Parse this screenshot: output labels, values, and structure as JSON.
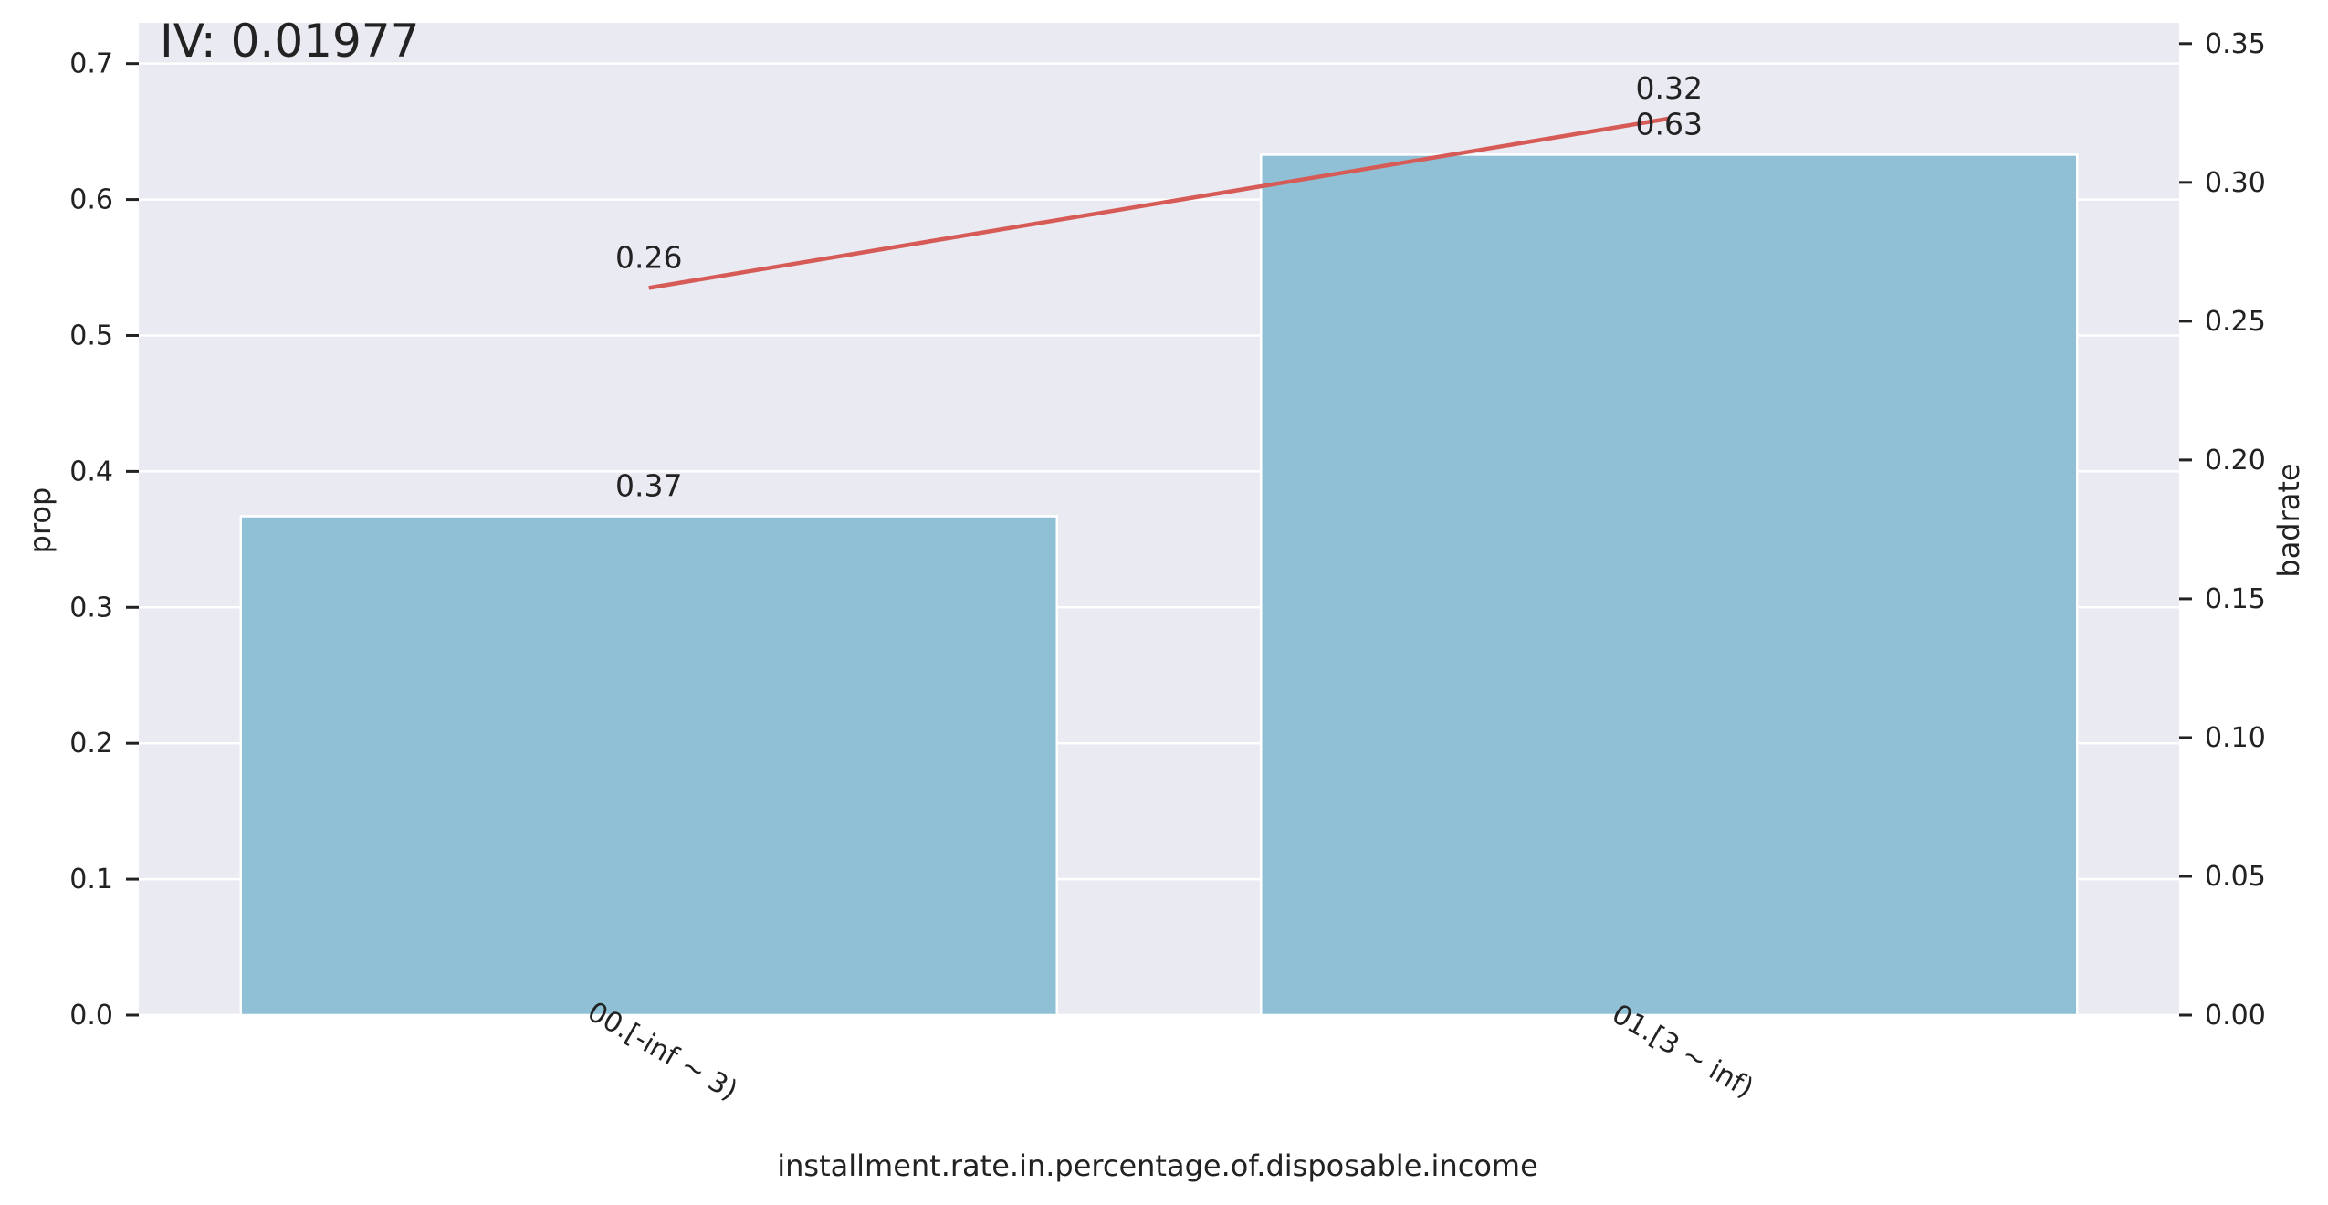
{
  "chart_data": {
    "type": "bar",
    "annotation": "IV: 0.01977",
    "categories": [
      "00.[-inf ~ 3)",
      "01.[3 ~ inf)"
    ],
    "xlabel": "installment.rate.in.percentage.of.disposable.income",
    "ylabel_left": "prop",
    "ylabel_right": "badrate",
    "series": [
      {
        "axis": "left",
        "kind": "bar",
        "values": [
          0.367,
          0.633
        ],
        "labels": [
          "0.37",
          "0.63"
        ],
        "color": "#8fc0d6"
      },
      {
        "axis": "right",
        "kind": "line",
        "values": [
          0.262,
          0.323
        ],
        "labels": [
          "0.26",
          "0.32"
        ],
        "color": "#d65a56"
      }
    ],
    "ylim_left": [
      0,
      0.73
    ],
    "ylim_right": [
      0,
      0.3575
    ],
    "yticks_left": [
      "0.0",
      "0.1",
      "0.2",
      "0.3",
      "0.4",
      "0.5",
      "0.6",
      "0.7"
    ],
    "yticks_right": [
      "0.00",
      "0.05",
      "0.10",
      "0.15",
      "0.20",
      "0.25",
      "0.30",
      "0.35"
    ],
    "grid": true,
    "background": "#eaeaf2"
  }
}
